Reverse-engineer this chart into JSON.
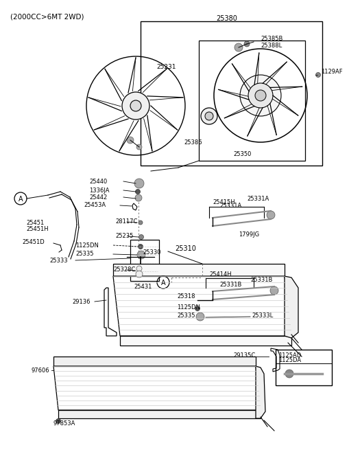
{
  "title": "(2000CC>6MT 2WD)",
  "bg_color": "#ffffff",
  "line_color": "#000000",
  "gray_color": "#555555",
  "light_gray": "#aaaaaa",
  "parts": {
    "fan_assembly_label": "25380",
    "fan_blade_label": "25231",
    "fan_motor_label": "25386",
    "fan_shroud_label": "25350",
    "fan_conn1": "25385B",
    "fan_conn2": "25388L",
    "bolt_1129AF": "1129AF",
    "cap_25440": "25440",
    "washer_1336JA": "1336JA",
    "washer_25442": "25442",
    "clamp_25453A": "25453A",
    "hose_25451": "25451",
    "hose_25451H": "25451H",
    "drain_25451D": "25451D",
    "conn_28117C": "28117C",
    "bolt_25235": "25235",
    "tank_25431": "25431",
    "outlet_25415H": "25415H",
    "hose_25331A_1": "25331A",
    "hose_25331A_2": "25331A",
    "bolt_1799JG": "1799JG",
    "rad_25310": "25310",
    "pipe_25330": "25330",
    "oring_25328C": "25328C",
    "bolt_1125DN_L": "1125DN",
    "bush_25335_L": "25335",
    "brkt_25333": "25333",
    "mount_29136": "29136",
    "outlet_25414H": "25414H",
    "hose_25331B_1": "25331B",
    "hose_25331B_2": "25331B",
    "pipe_25318": "25318",
    "bolt_1125DN_R": "1125DN",
    "bush_25335_R": "25335",
    "bush_25333L": "25333L",
    "cond_97606": "97606",
    "cond_brkt_97853A": "97853A",
    "mount_29135C": "29135C",
    "leg_1125AD": "1125AD",
    "leg_1125DA": "1125DA",
    "circA_L": "A",
    "circA_R": "A"
  }
}
